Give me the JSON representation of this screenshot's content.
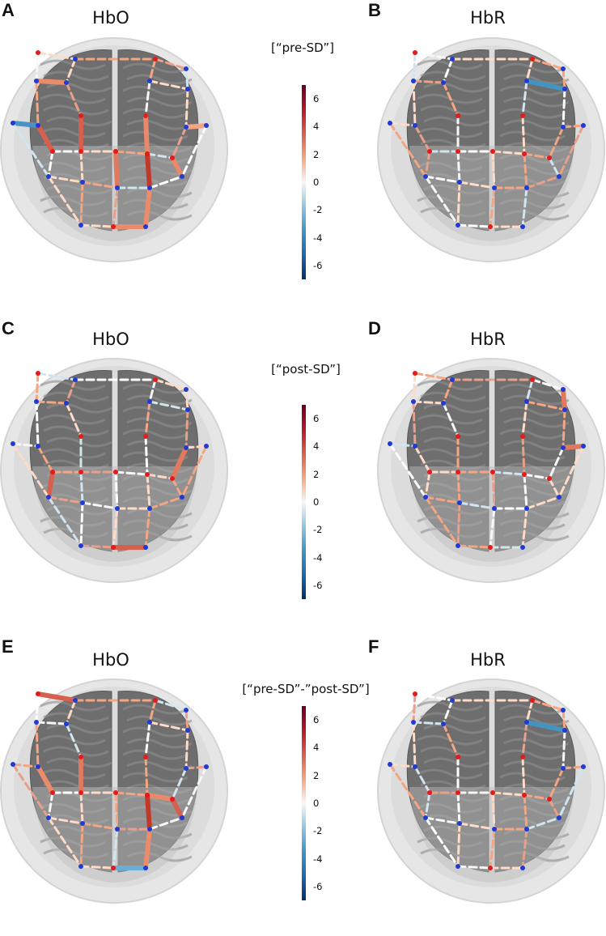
{
  "panels": [
    {
      "letter": "A",
      "title": "HbO"
    },
    {
      "letter": "B",
      "title": "HbR"
    },
    {
      "letter": "C",
      "title": "HbO"
    },
    {
      "letter": "D",
      "title": "HbR"
    },
    {
      "letter": "E",
      "title": "HbO"
    },
    {
      "letter": "F",
      "title": "HbR"
    }
  ],
  "conditions": [
    "[“pre-SD”]",
    "[“post-SD”]",
    "[“pre-SD”-”post-SD”]"
  ],
  "colorbar": {
    "ticks": [
      "6",
      "4",
      "2",
      "0",
      "-2",
      "-4",
      "-6"
    ],
    "range": [
      -7,
      7
    ],
    "colormap": [
      "#053061",
      "#2166ac",
      "#4393c3",
      "#92c5de",
      "#f7f7f7",
      "#f4a582",
      "#d6604d",
      "#b2182b",
      "#67001f"
    ]
  }
}
